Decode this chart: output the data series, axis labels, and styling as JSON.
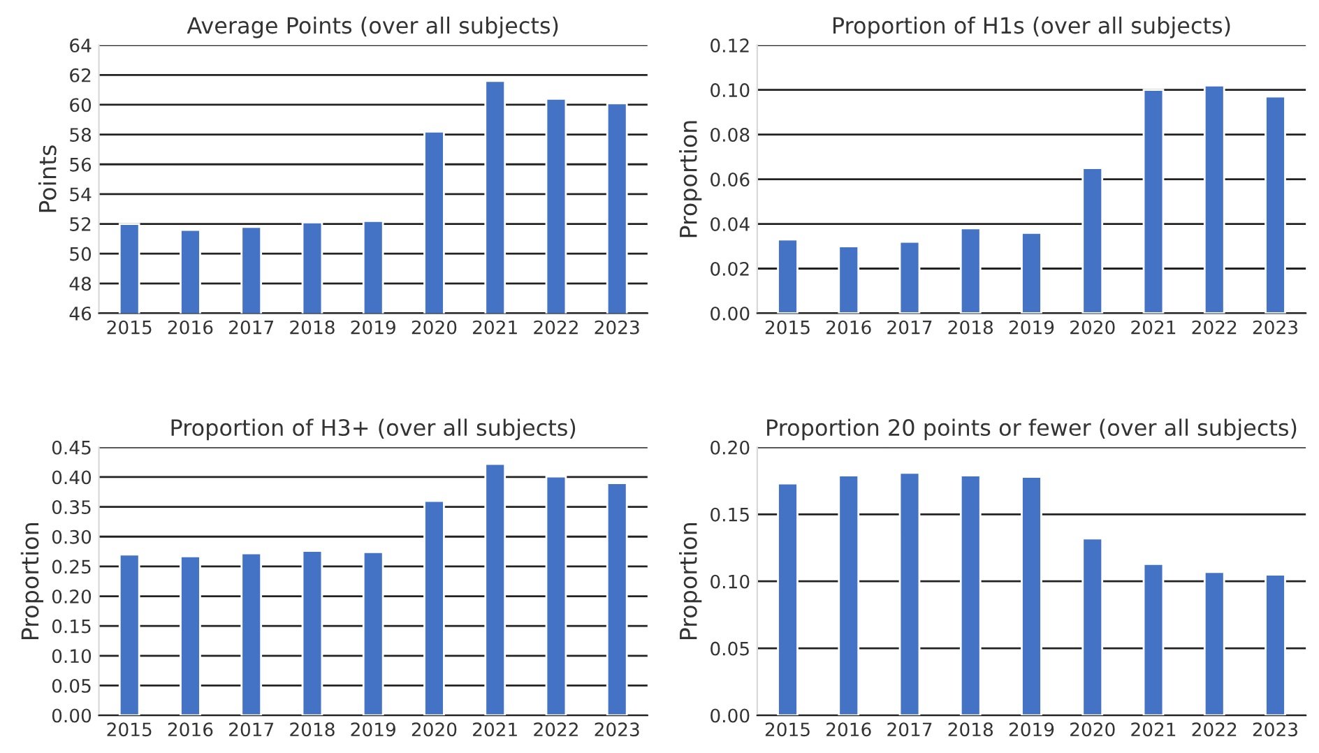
{
  "chart_data": [
    {
      "type": "bar",
      "title": "Average Points (over all subjects)",
      "ylabel": "Points",
      "categories": [
        "2015",
        "2016",
        "2017",
        "2018",
        "2019",
        "2020",
        "2021",
        "2022",
        "2023"
      ],
      "values": [
        52.0,
        51.6,
        51.8,
        52.1,
        52.2,
        58.2,
        61.6,
        60.4,
        60.1
      ],
      "color": "#4472c4",
      "ylim": [
        46,
        64
      ],
      "yticks": [
        46,
        48,
        50,
        52,
        54,
        56,
        58,
        60,
        62,
        64
      ],
      "grid": "y"
    },
    {
      "type": "bar",
      "title": "Proportion of H1s (over all subjects)",
      "ylabel": "Proportion",
      "categories": [
        "2015",
        "2016",
        "2017",
        "2018",
        "2019",
        "2020",
        "2021",
        "2022",
        "2023"
      ],
      "values": [
        0.033,
        0.03,
        0.032,
        0.038,
        0.036,
        0.065,
        0.1,
        0.102,
        0.097
      ],
      "color": "#4472c4",
      "ylim": [
        0,
        0.12
      ],
      "yticks": [
        {
          "value": 0,
          "label": "0.00"
        },
        {
          "value": 0.02,
          "label": "0.02"
        },
        {
          "value": 0.04,
          "label": "0.04"
        },
        {
          "value": 0.06,
          "label": "0.06"
        },
        {
          "value": 0.08,
          "label": "0.08"
        },
        {
          "value": 0.1,
          "label": "0.10"
        },
        {
          "value": 0.12,
          "label": "0.12"
        }
      ],
      "grid": "y"
    },
    {
      "type": "bar",
      "title": "Proportion of H3+ (over all subjects)",
      "ylabel": "Proportion",
      "categories": [
        "2015",
        "2016",
        "2017",
        "2018",
        "2019",
        "2020",
        "2021",
        "2022",
        "2023"
      ],
      "values": [
        0.27,
        0.267,
        0.272,
        0.276,
        0.274,
        0.36,
        0.422,
        0.401,
        0.39
      ],
      "color": "#4472c4",
      "ylim": [
        0,
        0.45
      ],
      "yticks": [
        {
          "value": 0,
          "label": "0.00"
        },
        {
          "value": 0.05,
          "label": "0.05"
        },
        {
          "value": 0.1,
          "label": "0.10"
        },
        {
          "value": 0.15,
          "label": "0.15"
        },
        {
          "value": 0.2,
          "label": "0.20"
        },
        {
          "value": 0.25,
          "label": "0.25"
        },
        {
          "value": 0.3,
          "label": "0.30"
        },
        {
          "value": 0.35,
          "label": "0.35"
        },
        {
          "value": 0.4,
          "label": "0.40"
        },
        {
          "value": 0.45,
          "label": "0.45"
        }
      ],
      "grid": "y"
    },
    {
      "type": "bar",
      "title": "Proportion 20 points or fewer (over all subjects)",
      "ylabel": "Proportion",
      "categories": [
        "2015",
        "2016",
        "2017",
        "2018",
        "2019",
        "2020",
        "2021",
        "2022",
        "2023"
      ],
      "values": [
        0.173,
        0.179,
        0.181,
        0.179,
        0.178,
        0.132,
        0.113,
        0.107,
        0.105
      ],
      "color": "#4472c4",
      "ylim": [
        0,
        0.2
      ],
      "yticks": [
        {
          "value": 0,
          "label": "0.00"
        },
        {
          "value": 0.05,
          "label": "0.05"
        },
        {
          "value": 0.1,
          "label": "0.10"
        },
        {
          "value": 0.15,
          "label": "0.15"
        },
        {
          "value": 0.2,
          "label": "0.20"
        }
      ],
      "grid": "y"
    }
  ]
}
